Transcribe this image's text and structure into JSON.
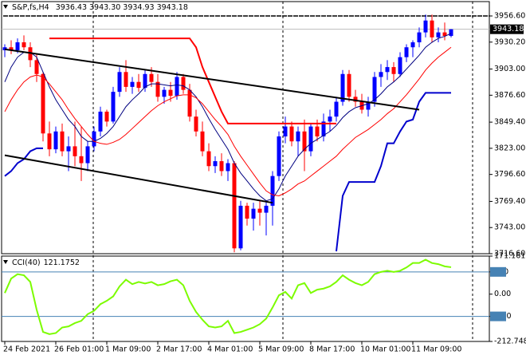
{
  "chart_data": [
    {
      "type": "candlestick",
      "header_symbol": "S&P,fs,H4",
      "header_values": [
        "3936.43",
        "3943.30",
        "3934.93",
        "3943.18"
      ],
      "ylim": [
        3716.6,
        3971.1
      ],
      "yticks": [
        {
          "value": 3956.6,
          "label": "3956.60"
        },
        {
          "value": 3930.2,
          "label": "3930.20"
        },
        {
          "value": 3903.0,
          "label": "3903.00"
        },
        {
          "value": 3876.6,
          "label": "3876.60"
        },
        {
          "value": 3849.4,
          "label": "3849.40"
        },
        {
          "value": 3823.0,
          "label": "3823.00"
        },
        {
          "value": 3796.6,
          "label": "3796.60"
        },
        {
          "value": 3769.4,
          "label": "3769.40"
        },
        {
          "value": 3743.0,
          "label": "3743.00"
        },
        {
          "value": 3716.6,
          "label": "3716.60"
        }
      ],
      "x_labels": [
        {
          "index": 0,
          "label": "24 Feb 2021"
        },
        {
          "index": 8,
          "label": "26 Feb 01:00"
        },
        {
          "index": 16,
          "label": "1 Mar 09:00"
        },
        {
          "index": 24,
          "label": "2 Mar 17:00"
        },
        {
          "index": 32,
          "label": "4 Mar 01:00"
        },
        {
          "index": 40,
          "label": "5 Mar 09:00"
        },
        {
          "index": 48,
          "label": "8 Mar 17:00"
        },
        {
          "index": 56,
          "label": "10 Mar 01:00"
        },
        {
          "index": 64,
          "label": "11 Mar 09:00"
        }
      ],
      "separators": [
        13.875,
        43.625,
        73.375
      ],
      "up_color": "#0000ff",
      "down_color": "#ff0000",
      "candles": {
        "open": [
          3922,
          3925,
          3922,
          3930,
          3925,
          3912,
          3898,
          3838,
          3822,
          3840,
          3820,
          3825,
          3815,
          3808,
          3825,
          3840,
          3860,
          3850,
          3880,
          3900,
          3885,
          3890,
          3884,
          3898,
          3890,
          3875,
          3882,
          3876,
          3895,
          3882,
          3855,
          3840,
          3820,
          3805,
          3810,
          3800,
          3808,
          3722,
          3765,
          3752,
          3762,
          3758,
          3765,
          3795,
          3835,
          3845,
          3830,
          3840,
          3820,
          3845,
          3835,
          3850,
          3855,
          3870,
          3898,
          3875,
          3870,
          3862,
          3870,
          3895,
          3900,
          3905,
          3898,
          3915,
          3925,
          3930,
          3940,
          3952,
          3935,
          3940,
          3936.43
        ],
        "high": [
          3928,
          3932,
          3934,
          3937,
          3930,
          3918,
          3900,
          3850,
          3845,
          3848,
          3835,
          3850,
          3845,
          3830,
          3845,
          3865,
          3862,
          3885,
          3905,
          3912,
          3895,
          3898,
          3902,
          3905,
          3898,
          3885,
          3890,
          3900,
          3898,
          3888,
          3862,
          3850,
          3828,
          3815,
          3818,
          3812,
          3810,
          3770,
          3768,
          3768,
          3770,
          3770,
          3800,
          3840,
          3855,
          3850,
          3845,
          3852,
          3848,
          3852,
          3858,
          3862,
          3875,
          3902,
          3902,
          3882,
          3878,
          3875,
          3900,
          3908,
          3912,
          3910,
          3920,
          3928,
          3932,
          3945,
          3958,
          3958,
          3945,
          3950,
          3943.3
        ],
        "low": [
          3915,
          3918,
          3919,
          3922,
          3905,
          3890,
          3830,
          3815,
          3818,
          3815,
          3800,
          3805,
          3790,
          3800,
          3820,
          3835,
          3845,
          3848,
          3875,
          3880,
          3878,
          3880,
          3880,
          3885,
          3870,
          3868,
          3870,
          3872,
          3878,
          3850,
          3835,
          3815,
          3800,
          3798,
          3795,
          3790,
          3718,
          3720,
          3745,
          3740,
          3745,
          3735,
          3745,
          3790,
          3828,
          3825,
          3815,
          3800,
          3815,
          3830,
          3830,
          3840,
          3850,
          3866,
          3870,
          3865,
          3858,
          3855,
          3865,
          3885,
          3892,
          3890,
          3895,
          3910,
          3915,
          3925,
          3935,
          3930,
          3930,
          3932,
          3934.93
        ],
        "close": [
          3925,
          3922,
          3930,
          3925,
          3912,
          3898,
          3838,
          3822,
          3840,
          3820,
          3825,
          3815,
          3808,
          3825,
          3840,
          3860,
          3850,
          3880,
          3900,
          3885,
          3890,
          3884,
          3898,
          3890,
          3875,
          3882,
          3876,
          3895,
          3882,
          3855,
          3840,
          3820,
          3805,
          3810,
          3800,
          3808,
          3722,
          3765,
          3752,
          3762,
          3758,
          3765,
          3795,
          3835,
          3845,
          3830,
          3840,
          3820,
          3845,
          3835,
          3850,
          3855,
          3870,
          3898,
          3875,
          3870,
          3862,
          3870,
          3895,
          3900,
          3905,
          3898,
          3915,
          3925,
          3930,
          3940,
          3952,
          3935,
          3940,
          3936.43,
          3943.18
        ]
      },
      "lines": [
        {
          "color": "#000080",
          "width": 1,
          "values": [
            3890,
            3905,
            3915,
            3920,
            3920,
            3915,
            3900,
            3885,
            3872,
            3862,
            3852,
            3845,
            3835,
            3830,
            3830,
            3833,
            3838,
            3845,
            3855,
            3865,
            3872,
            3878,
            3885,
            3888,
            3888,
            3887,
            3886,
            3887,
            3886,
            3882,
            3875,
            3865,
            3853,
            3842,
            3832,
            3822,
            3808,
            3798,
            3790,
            3782,
            3775,
            3770,
            3772,
            3782,
            3795,
            3805,
            3815,
            3822,
            3828,
            3832,
            3836,
            3840,
            3846,
            3854,
            3860,
            3864,
            3866,
            3868,
            3872,
            3878,
            3885,
            3890,
            3896,
            3903,
            3910,
            3917,
            3925,
            3930,
            3934,
            3936,
            3939
          ]
        },
        {
          "color": "#ff0000",
          "width": 1,
          "values": [
            3860,
            3872,
            3882,
            3890,
            3895,
            3897,
            3895,
            3888,
            3880,
            3872,
            3862,
            3853,
            3845,
            3837,
            3830,
            3828,
            3827,
            3829,
            3832,
            3837,
            3843,
            3849,
            3855,
            3861,
            3866,
            3870,
            3873,
            3876,
            3877,
            3877,
            3874,
            3868,
            3860,
            3852,
            3845,
            3837,
            3825,
            3815,
            3806,
            3797,
            3788,
            3780,
            3776,
            3775,
            3778,
            3782,
            3787,
            3790,
            3795,
            3800,
            3805,
            3810,
            3815,
            3822,
            3828,
            3834,
            3838,
            3842,
            3847,
            3852,
            3858,
            3863,
            3870,
            3877,
            3885,
            3893,
            3902,
            3909,
            3915,
            3920,
            3925
          ]
        },
        {
          "color": "#ff0000",
          "width": 2,
          "values": [
            null,
            null,
            null,
            null,
            null,
            null,
            null,
            3934,
            3934,
            3934,
            3934,
            3934,
            3934,
            3934,
            3934,
            3934,
            3934,
            3934,
            3934,
            3934,
            3934,
            3934,
            3934,
            3934,
            3934,
            3934,
            3934,
            3934,
            3934,
            3934,
            3925,
            3905,
            3890,
            3875,
            3860,
            3848,
            3848,
            3848,
            3848,
            3848,
            3848,
            3848,
            3848,
            3848,
            3848,
            3848,
            3848,
            3848,
            3848,
            3848,
            3848,
            3848,
            3848,
            null,
            null,
            null,
            null,
            null,
            null,
            null,
            null,
            null,
            null,
            null,
            null,
            null,
            null,
            null,
            null,
            null,
            null
          ]
        },
        {
          "color": "#0000cd",
          "width": 2,
          "values": [
            3795,
            3800,
            3808,
            3812,
            3820,
            3823,
            3823,
            null,
            null,
            null,
            null,
            null,
            null,
            null,
            null,
            null,
            null,
            null,
            null,
            null,
            null,
            null,
            null,
            null,
            null,
            null,
            null,
            null,
            null,
            null,
            null,
            null,
            null,
            null,
            null,
            null,
            null,
            null,
            null,
            null,
            null,
            null,
            null,
            null,
            null,
            null,
            null,
            null,
            null,
            null,
            null,
            null,
            3719,
            3775,
            3789,
            3789,
            3789,
            3789,
            3789,
            3805,
            3828,
            3828,
            3840,
            3850,
            3852,
            3870,
            3879,
            3879,
            3879,
            3879,
            3879
          ]
        }
      ],
      "trendlines": [
        {
          "color": "#000000",
          "points": [
            [
              0,
              3923
            ],
            [
              65,
              3862
            ]
          ]
        },
        {
          "color": "#000000",
          "points": [
            [
              0,
              3816
            ],
            [
              42,
              3768
            ]
          ]
        }
      ],
      "hlines": [
        {
          "value": 3956.6,
          "color": "#000000"
        }
      ]
    },
    {
      "type": "line",
      "title": "CCI(40)",
      "ylim": [
        -212.7487,
        171.1612
      ],
      "yticks": [
        171.1612,
        100,
        {
          "value": 0,
          "label": "0.00"
        },
        -100,
        -212.7487
      ],
      "levels": [
        100,
        -100
      ],
      "level_color": "#4682b4",
      "series": [
        {
          "color": "#7cfc00",
          "values": [
            5,
            70,
            90,
            85,
            55,
            -70,
            -170,
            -180,
            -175,
            -150,
            -145,
            -130,
            -120,
            -90,
            -75,
            -45,
            -30,
            -10,
            35,
            65,
            45,
            55,
            48,
            55,
            40,
            45,
            58,
            65,
            40,
            -30,
            -80,
            -115,
            -145,
            -150,
            -145,
            -120,
            -175,
            -170,
            -160,
            -150,
            -135,
            -110,
            -60,
            -5,
            10,
            -20,
            40,
            50,
            5,
            20,
            25,
            35,
            55,
            85,
            65,
            50,
            40,
            55,
            90,
            100,
            105,
            100,
            105,
            120,
            140,
            140,
            155,
            140,
            135,
            125,
            121.1752
          ]
        }
      ]
    }
  ]
}
